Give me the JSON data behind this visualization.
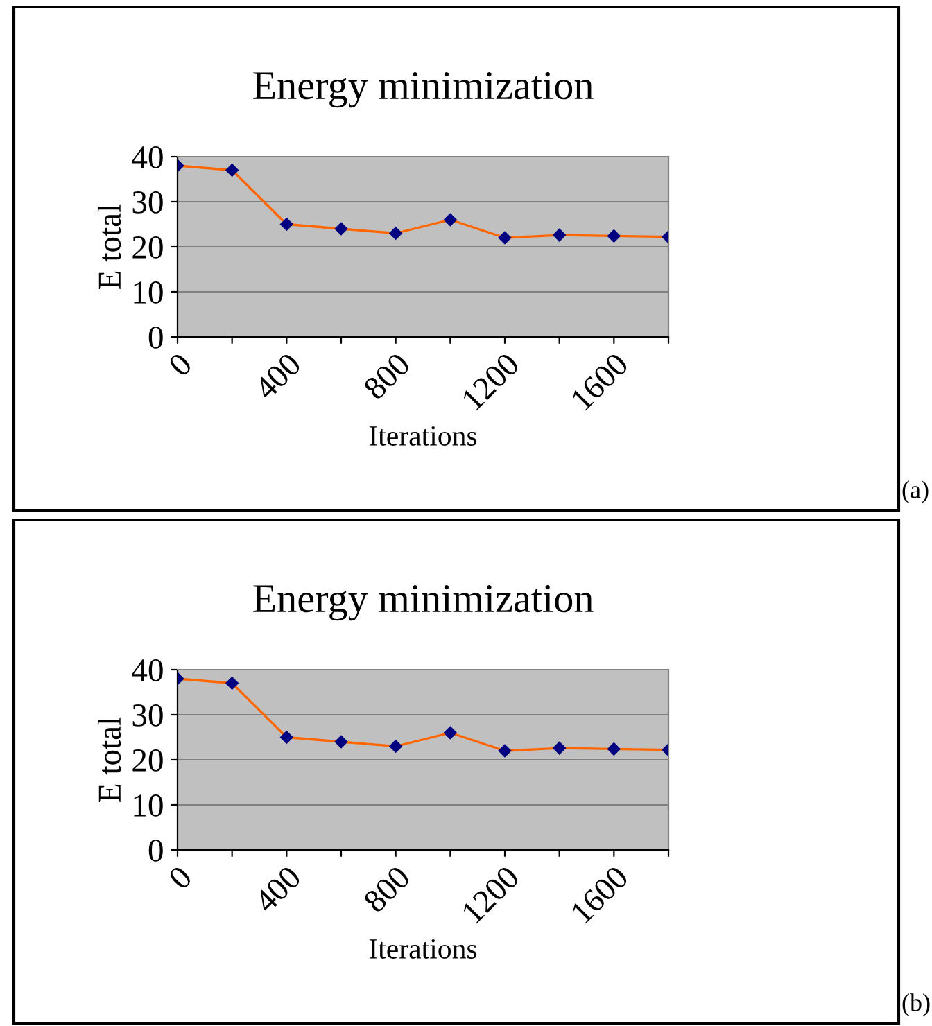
{
  "chart_data": [
    {
      "type": "line",
      "title": "Energy minimization",
      "xlabel": "Iterations",
      "ylabel": "E total",
      "x": [
        0,
        200,
        400,
        600,
        800,
        1000,
        1200,
        1400,
        1600,
        1800
      ],
      "series": [
        {
          "color": "#ff6600",
          "values": [
            38,
            37,
            25,
            24,
            23,
            26,
            22,
            22.6,
            22.4,
            22.2
          ]
        }
      ],
      "xlim": [
        0,
        1800
      ],
      "xticks": [
        0,
        {
          "value": 200,
          "label": null
        },
        400,
        {
          "value": 600,
          "label": null
        },
        800,
        {
          "value": 1000,
          "label": null
        },
        1200,
        {
          "value": 1400,
          "label": null
        },
        1600,
        {
          "value": 1800,
          "label": null
        }
      ],
      "ylim": [
        0,
        40
      ],
      "yticks": [
        0,
        10,
        20,
        30,
        40
      ],
      "grid": "y",
      "marker": "diamond",
      "line_style": "solid",
      "legend": false,
      "annotations": [
        "(a)"
      ]
    },
    {
      "type": "line",
      "title": "Energy minimization",
      "xlabel": "Iterations",
      "ylabel": "E total",
      "x": [
        0,
        200,
        400,
        600,
        800,
        1000,
        1200,
        1400,
        1600,
        1800
      ],
      "series": [
        {
          "color": "#ff6600",
          "values": [
            38,
            37,
            25,
            24,
            23,
            26,
            22,
            22.6,
            22.4,
            22.2
          ]
        }
      ],
      "xlim": [
        0,
        1800
      ],
      "xticks": [
        0,
        {
          "value": 200,
          "label": null
        },
        400,
        {
          "value": 600,
          "label": null
        },
        800,
        {
          "value": 1000,
          "label": null
        },
        1200,
        {
          "value": 1400,
          "label": null
        },
        1600,
        {
          "value": 1800,
          "label": null
        }
      ],
      "ylim": [
        0,
        40
      ],
      "yticks": [
        0,
        10,
        20,
        30,
        40
      ],
      "grid": "y",
      "marker": "diamond",
      "line_style": "solid",
      "legend": false,
      "annotations": [
        "(b)"
      ]
    }
  ]
}
